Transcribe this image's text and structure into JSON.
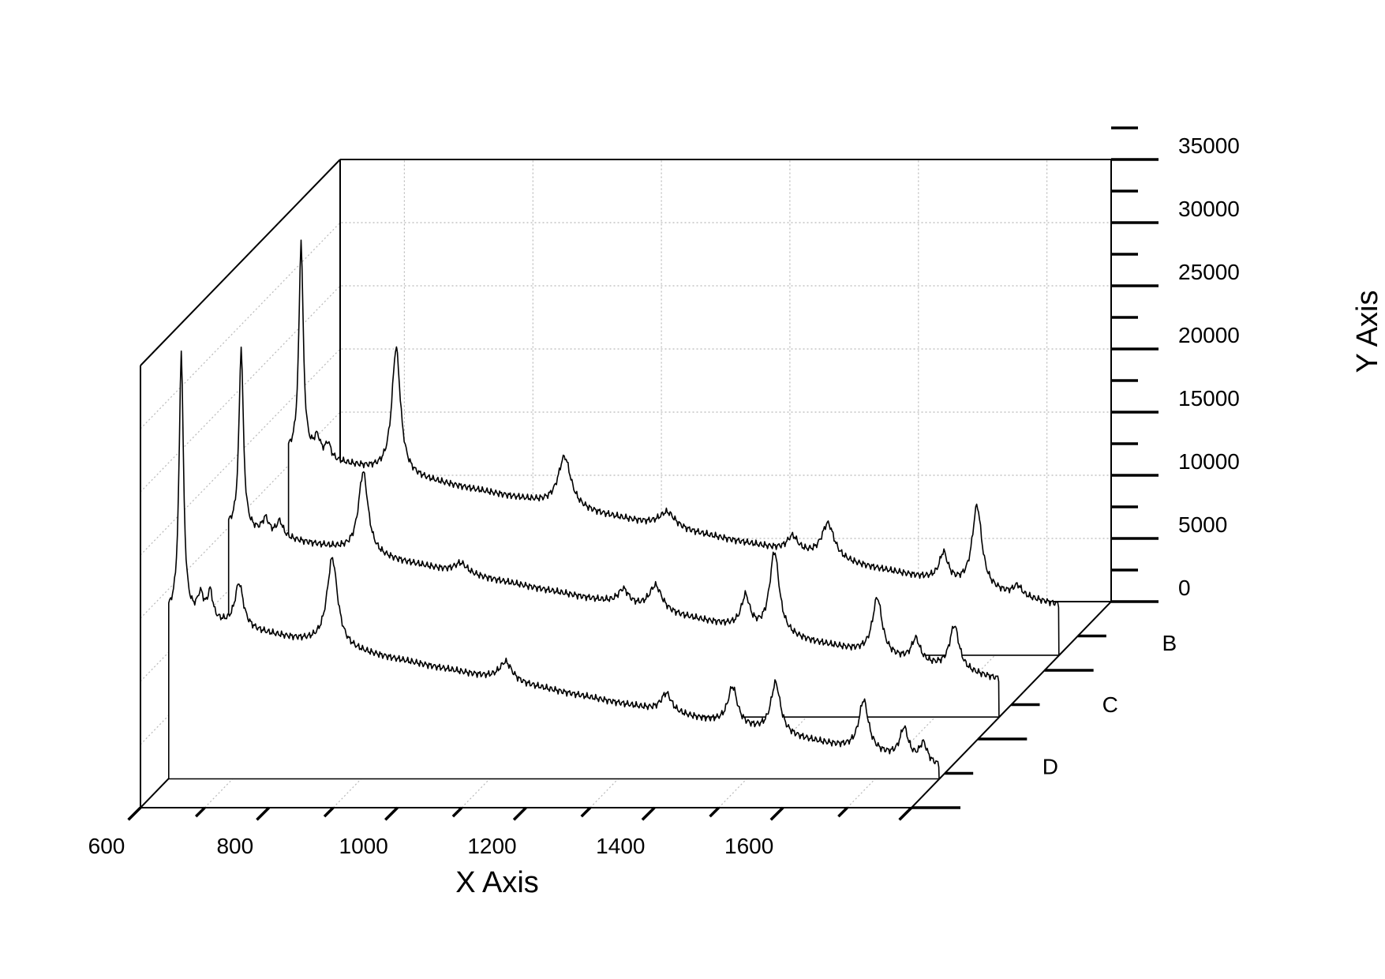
{
  "chart_data": {
    "type": "line",
    "subtype": "3d-waterfall",
    "title": "",
    "xlabel": "X Axis",
    "ylabel": "Y Axis",
    "zlabel": "",
    "xlim": [
      600,
      1800
    ],
    "ylim": [
      0,
      35000
    ],
    "x_ticks": [
      600,
      800,
      1000,
      1200,
      1400,
      1600
    ],
    "y_ticks": [
      0,
      5000,
      10000,
      15000,
      20000,
      25000,
      30000,
      35000
    ],
    "z_categories": [
      "B",
      "C",
      "D"
    ],
    "grid": true,
    "legend": "none",
    "line_color": "#000000",
    "series": [
      {
        "name": "B",
        "baseline": 16000,
        "slope_per_100": -1000,
        "peaks": [
          {
            "x": 620,
            "height": 17000,
            "width": 4
          },
          {
            "x": 645,
            "height": 1500,
            "width": 6
          },
          {
            "x": 662,
            "height": 1200,
            "width": 5
          },
          {
            "x": 768,
            "height": 10000,
            "width": 8
          },
          {
            "x": 1030,
            "height": 4000,
            "width": 12
          },
          {
            "x": 1190,
            "height": 1200,
            "width": 15
          },
          {
            "x": 1385,
            "height": 1200,
            "width": 10
          },
          {
            "x": 1440,
            "height": 2800,
            "width": 12
          },
          {
            "x": 1620,
            "height": 2200,
            "width": 8
          },
          {
            "x": 1672,
            "height": 6500,
            "width": 9
          },
          {
            "x": 1735,
            "height": 800,
            "width": 8
          }
        ]
      },
      {
        "name": "C",
        "baseline": 15000,
        "slope_per_100": -1000,
        "peaks": [
          {
            "x": 620,
            "height": 14500,
            "width": 4
          },
          {
            "x": 658,
            "height": 1200,
            "width": 6
          },
          {
            "x": 680,
            "height": 1200,
            "width": 6
          },
          {
            "x": 810,
            "height": 6500,
            "width": 9
          },
          {
            "x": 962,
            "height": 800,
            "width": 12
          },
          {
            "x": 1215,
            "height": 1200,
            "width": 10
          },
          {
            "x": 1265,
            "height": 2000,
            "width": 12
          },
          {
            "x": 1405,
            "height": 2500,
            "width": 8
          },
          {
            "x": 1450,
            "height": 6500,
            "width": 9
          },
          {
            "x": 1610,
            "height": 4500,
            "width": 9
          },
          {
            "x": 1670,
            "height": 1800,
            "width": 8
          },
          {
            "x": 1730,
            "height": 3500,
            "width": 9
          }
        ]
      },
      {
        "name": "D",
        "baseline": 13000,
        "slope_per_100": -1000,
        "peaks": [
          {
            "x": 620,
            "height": 21000,
            "width": 4
          },
          {
            "x": 650,
            "height": 1800,
            "width": 6
          },
          {
            "x": 665,
            "height": 2200,
            "width": 5
          },
          {
            "x": 710,
            "height": 3500,
            "width": 8
          },
          {
            "x": 855,
            "height": 7000,
            "width": 10
          },
          {
            "x": 1125,
            "height": 1500,
            "width": 12
          },
          {
            "x": 1375,
            "height": 1500,
            "width": 10
          },
          {
            "x": 1478,
            "height": 3000,
            "width": 9
          },
          {
            "x": 1545,
            "height": 4000,
            "width": 9
          },
          {
            "x": 1682,
            "height": 4000,
            "width": 9
          },
          {
            "x": 1745,
            "height": 2400,
            "width": 8
          },
          {
            "x": 1775,
            "height": 1500,
            "width": 7
          }
        ]
      }
    ]
  }
}
